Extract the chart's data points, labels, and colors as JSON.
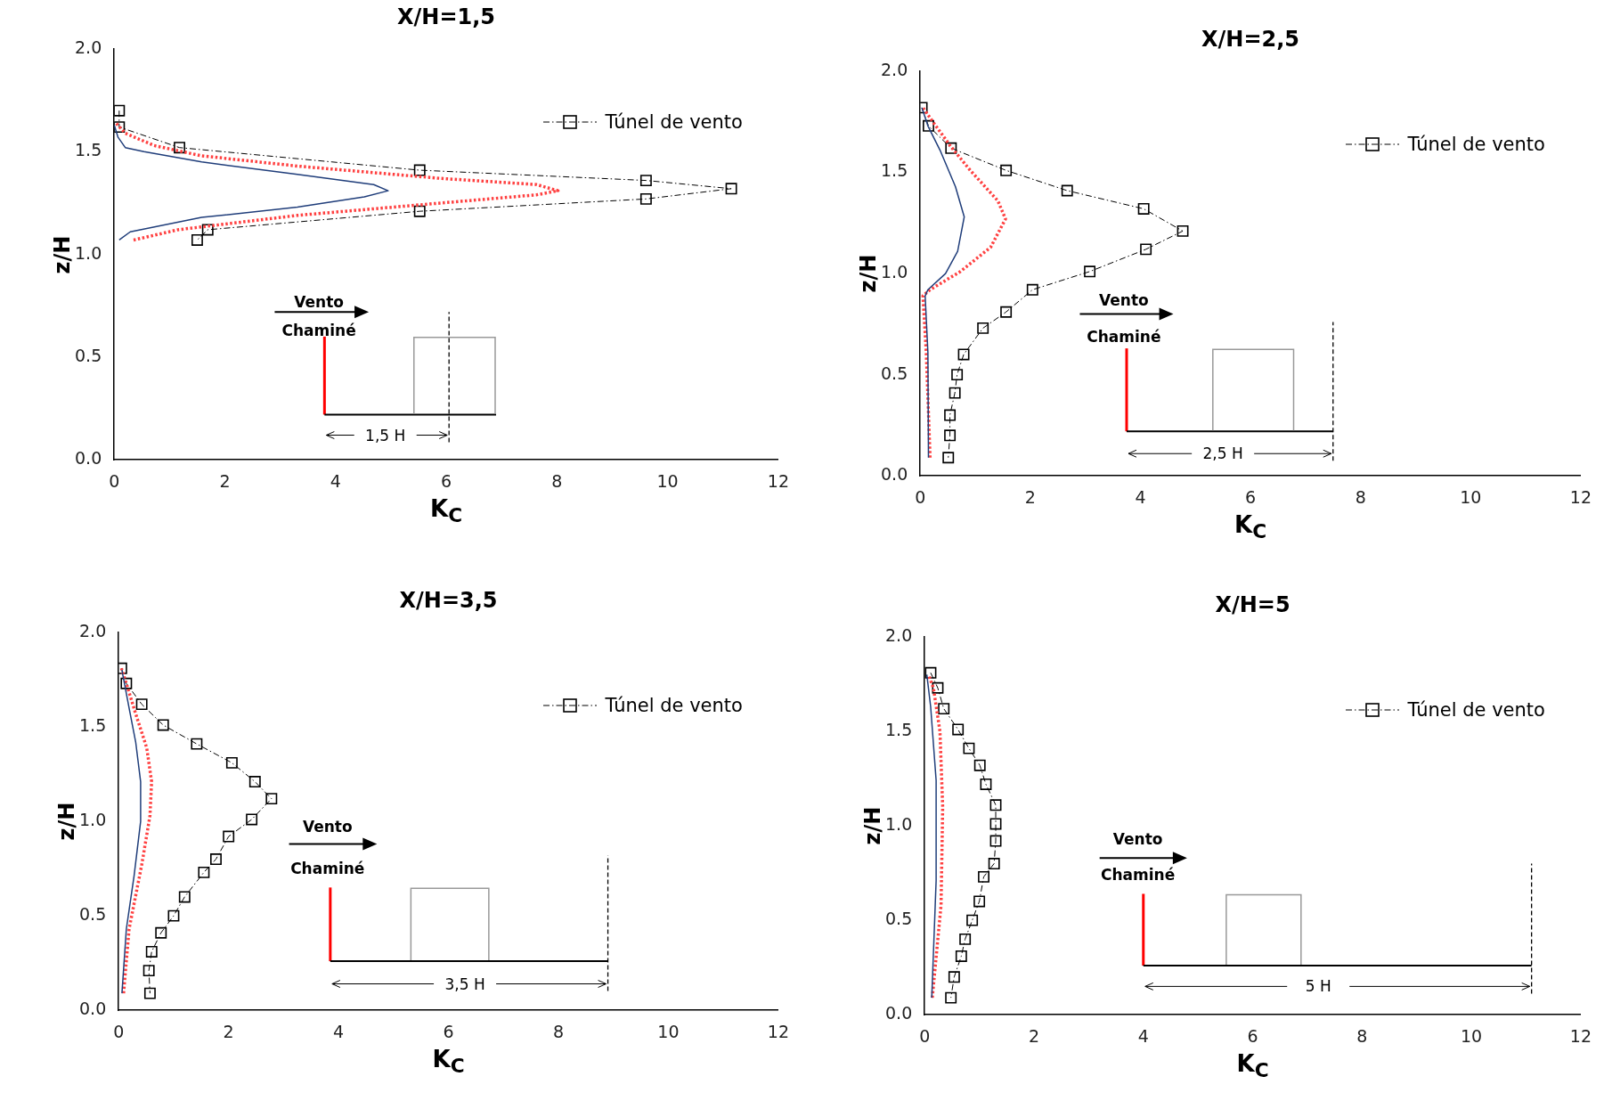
{
  "chart_data": [
    {
      "type": "line",
      "title": "X/H=1,5",
      "xlabel": "K$_{C}$",
      "ylabel": "z/H",
      "xlim": [
        0,
        12
      ],
      "xticks": [
        0,
        2,
        4,
        6,
        8,
        10,
        12
      ],
      "ylim": [
        0,
        2
      ],
      "yticks": [
        {
          "value": 0,
          "label": "0.0"
        },
        {
          "value": 0.5,
          "label": "0.5"
        },
        {
          "value": 1,
          "label": "1.0"
        },
        {
          "value": 1.5,
          "label": "1.5"
        },
        {
          "value": 2,
          "label": "2.0"
        }
      ],
      "grid": false,
      "legend": "top right",
      "annotations": [
        "Vento",
        "Chaminé",
        "1,5 H"
      ],
      "series": [
        {
          "color": "#1f3d7a",
          "line_style": "solid",
          "marker": "none",
          "x": [
            0.09,
            0.29,
            1.58,
            3.31,
            4.52,
            4.95,
            4.69,
            3.31,
            1.58,
            0.54,
            0.2,
            0.07,
            0
          ],
          "values": [
            1.07,
            1.11,
            1.18,
            1.23,
            1.28,
            1.31,
            1.34,
            1.39,
            1.45,
            1.5,
            1.52,
            1.57,
            1.63
          ]
        },
        {
          "color": "#ff4040",
          "line_style": "dotted",
          "marker": "none",
          "x": [
            0.35,
            1.15,
            3.31,
            5.9,
            7.63,
            8.02,
            7.63,
            5.9,
            3.31,
            1.58,
            0.72,
            0.2,
            0.03
          ],
          "values": [
            1.07,
            1.12,
            1.19,
            1.25,
            1.29,
            1.31,
            1.34,
            1.37,
            1.43,
            1.48,
            1.53,
            1.59,
            1.64
          ]
        },
        {
          "name": "Túnel de vento",
          "color": "#000000",
          "line_style": "dashed",
          "marker": "square",
          "x": [
            0.09,
            0.09,
            1.18,
            5.52,
            9.61,
            11.15,
            9.61,
            5.52,
            1.69,
            1.5
          ],
          "values": [
            1.7,
            1.62,
            1.52,
            1.41,
            1.36,
            1.32,
            1.27,
            1.21,
            1.12,
            1.07
          ]
        }
      ]
    },
    {
      "type": "line",
      "title": "X/H=2,5",
      "xlabel": "K$_{C}$",
      "ylabel": "z/H",
      "xlim": [
        0,
        12
      ],
      "xticks": [
        0,
        2,
        4,
        6,
        8,
        10,
        12
      ],
      "ylim": [
        0,
        2
      ],
      "yticks": [
        {
          "value": 0,
          "label": "0.0"
        },
        {
          "value": 0.5,
          "label": "0.5"
        },
        {
          "value": 1,
          "label": "1.0"
        },
        {
          "value": 1.5,
          "label": "1.5"
        },
        {
          "value": 2,
          "label": "2.0"
        }
      ],
      "grid": false,
      "legend": "top right",
      "annotations": [
        "Vento",
        "Chaminé",
        "2,5 H"
      ],
      "series": [
        {
          "color": "#1f3d7a",
          "line_style": "solid",
          "marker": "none",
          "x": [
            0.15,
            0.14,
            0.09,
            0.14,
            0.46,
            0.68,
            0.8,
            0.64,
            0.36,
            0.14,
            0.03
          ],
          "values": [
            0.09,
            0.61,
            0.89,
            0.92,
            1.0,
            1.11,
            1.28,
            1.43,
            1.61,
            1.73,
            1.82
          ]
        },
        {
          "color": "#ff4040",
          "line_style": "dotted",
          "marker": "none",
          "x": [
            0.18,
            0.11,
            0.05,
            0.18,
            0.73,
            1.28,
            1.55,
            1.41,
            0.91,
            0.55,
            0.23,
            0.05
          ],
          "values": [
            0.09,
            0.61,
            0.89,
            0.92,
            1.01,
            1.13,
            1.27,
            1.36,
            1.51,
            1.63,
            1.75,
            1.82
          ]
        },
        {
          "name": "Túnel de vento",
          "color": "#000000",
          "line_style": "dashed",
          "marker": "square",
          "x": [
            0.03,
            0.15,
            0.56,
            1.56,
            2.67,
            4.06,
            4.77,
            4.1,
            3.08,
            2.04,
            1.56,
            1.14,
            0.79,
            0.67,
            0.63,
            0.54,
            0.54,
            0.51
          ],
          "values": [
            1.82,
            1.73,
            1.62,
            1.51,
            1.41,
            1.32,
            1.21,
            1.12,
            1.01,
            0.92,
            0.81,
            0.73,
            0.6,
            0.5,
            0.41,
            0.3,
            0.2,
            0.09
          ]
        }
      ]
    },
    {
      "type": "line",
      "title": "X/H=3,5",
      "xlabel": "K$_{C}$",
      "ylabel": "z/H",
      "xlim": [
        0,
        12
      ],
      "xticks": [
        0,
        2,
        4,
        6,
        8,
        10,
        12
      ],
      "ylim": [
        0,
        2
      ],
      "yticks": [
        {
          "value": 0,
          "label": "0.0"
        },
        {
          "value": 0.5,
          "label": "0.5"
        },
        {
          "value": 1,
          "label": "1.0"
        },
        {
          "value": 1.5,
          "label": "1.5"
        },
        {
          "value": 2,
          "label": "2.0"
        }
      ],
      "grid": false,
      "legend": "top right",
      "annotations": [
        "Vento",
        "Chaminé",
        "3,5 H"
      ],
      "series": [
        {
          "color": "#1f3d7a",
          "line_style": "solid",
          "marker": "none",
          "x": [
            0.06,
            0.14,
            0.28,
            0.4,
            0.4,
            0.31,
            0.19,
            0.06
          ],
          "values": [
            0.09,
            0.43,
            0.71,
            1.0,
            1.21,
            1.42,
            1.6,
            1.8
          ]
        },
        {
          "color": "#ff4040",
          "line_style": "dotted",
          "marker": "none",
          "x": [
            0.09,
            0.19,
            0.42,
            0.57,
            0.6,
            0.51,
            0.32,
            0.14,
            0.05
          ],
          "values": [
            0.09,
            0.43,
            0.77,
            1.03,
            1.21,
            1.39,
            1.56,
            1.73,
            1.81
          ]
        },
        {
          "name": "Túnel de vento",
          "color": "#000000",
          "line_style": "dashed",
          "marker": "square",
          "x": [
            0.05,
            0.14,
            0.42,
            0.81,
            1.42,
            2.06,
            2.48,
            2.78,
            2.42,
            2.0,
            1.77,
            1.55,
            1.2,
            1.0,
            0.77,
            0.6,
            0.55,
            0.57
          ],
          "values": [
            1.81,
            1.73,
            1.62,
            1.51,
            1.41,
            1.31,
            1.21,
            1.12,
            1.01,
            0.92,
            0.8,
            0.73,
            0.6,
            0.5,
            0.41,
            0.31,
            0.21,
            0.09
          ]
        }
      ]
    },
    {
      "type": "line",
      "title": "X/H=5",
      "xlabel": "K$_{C}$",
      "ylabel": "z/H",
      "xlim": [
        0,
        12
      ],
      "xticks": [
        0,
        2,
        4,
        6,
        8,
        10,
        12
      ],
      "ylim": [
        0,
        2
      ],
      "yticks": [
        {
          "value": 0,
          "label": "0.0"
        },
        {
          "value": 0.5,
          "label": "0.5"
        },
        {
          "value": 1,
          "label": "1.0"
        },
        {
          "value": 1.5,
          "label": "1.5"
        },
        {
          "value": 2,
          "label": "2.0"
        }
      ],
      "grid": false,
      "legend": "top right",
      "annotations": [
        "Vento",
        "Chaminé",
        "5 H"
      ],
      "series": [
        {
          "color": "#1f3d7a",
          "line_style": "solid",
          "marker": "none",
          "x": [
            0.13,
            0.21,
            0.21,
            0.11,
            0.04
          ],
          "values": [
            0.09,
            0.71,
            1.24,
            1.63,
            1.8
          ]
        },
        {
          "color": "#ff4040",
          "line_style": "dotted",
          "marker": "none",
          "x": [
            0.14,
            0.3,
            0.33,
            0.28,
            0.16,
            0.07
          ],
          "values": [
            0.09,
            0.58,
            1.1,
            1.5,
            1.73,
            1.8
          ]
        },
        {
          "name": "Túnel de vento",
          "color": "#000000",
          "line_style": "dashed",
          "marker": "square",
          "x": [
            0.11,
            0.24,
            0.35,
            0.61,
            0.81,
            1.01,
            1.12,
            1.3,
            1.3,
            1.3,
            1.27,
            1.08,
            1.0,
            0.87,
            0.74,
            0.67,
            0.54,
            0.48
          ],
          "values": [
            1.81,
            1.73,
            1.62,
            1.51,
            1.41,
            1.32,
            1.22,
            1.11,
            1.01,
            0.92,
            0.8,
            0.73,
            0.6,
            0.5,
            0.4,
            0.31,
            0.2,
            0.09
          ]
        }
      ]
    }
  ]
}
